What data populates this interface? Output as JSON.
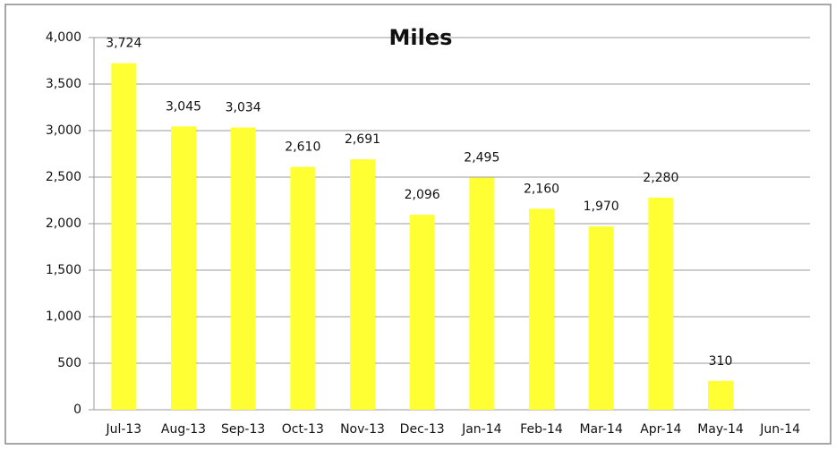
{
  "chart_data": {
    "type": "bar",
    "title": "Miles",
    "categories": [
      "Jul-13",
      "Aug-13",
      "Sep-13",
      "Oct-13",
      "Nov-13",
      "Dec-13",
      "Jan-14",
      "Feb-14",
      "Mar-14",
      "Apr-14",
      "May-14",
      "Jun-14"
    ],
    "values": [
      3724,
      3045,
      3034,
      2610,
      2691,
      2096,
      2495,
      2160,
      1970,
      2280,
      310,
      null
    ],
    "value_labels": [
      "3,724",
      "3,045",
      "3,034",
      "2,610",
      "2,691",
      "2,096",
      "2,495",
      "2,160",
      "1,970",
      "2,280",
      "310",
      null
    ],
    "color": "#ffff33",
    "ylim": [
      0,
      4000
    ],
    "yticks": [
      0,
      500,
      {
        "value": 1000,
        "label": "1,000"
      },
      {
        "value": 1500,
        "label": "1,500"
      },
      {
        "value": 2000,
        "label": "2,000"
      },
      {
        "value": 2500,
        "label": "2,500"
      },
      {
        "value": 3000,
        "label": "3,000"
      },
      {
        "value": 3500,
        "label": "3,500"
      },
      {
        "value": 4000,
        "label": "4,000"
      }
    ],
    "grid": true
  }
}
